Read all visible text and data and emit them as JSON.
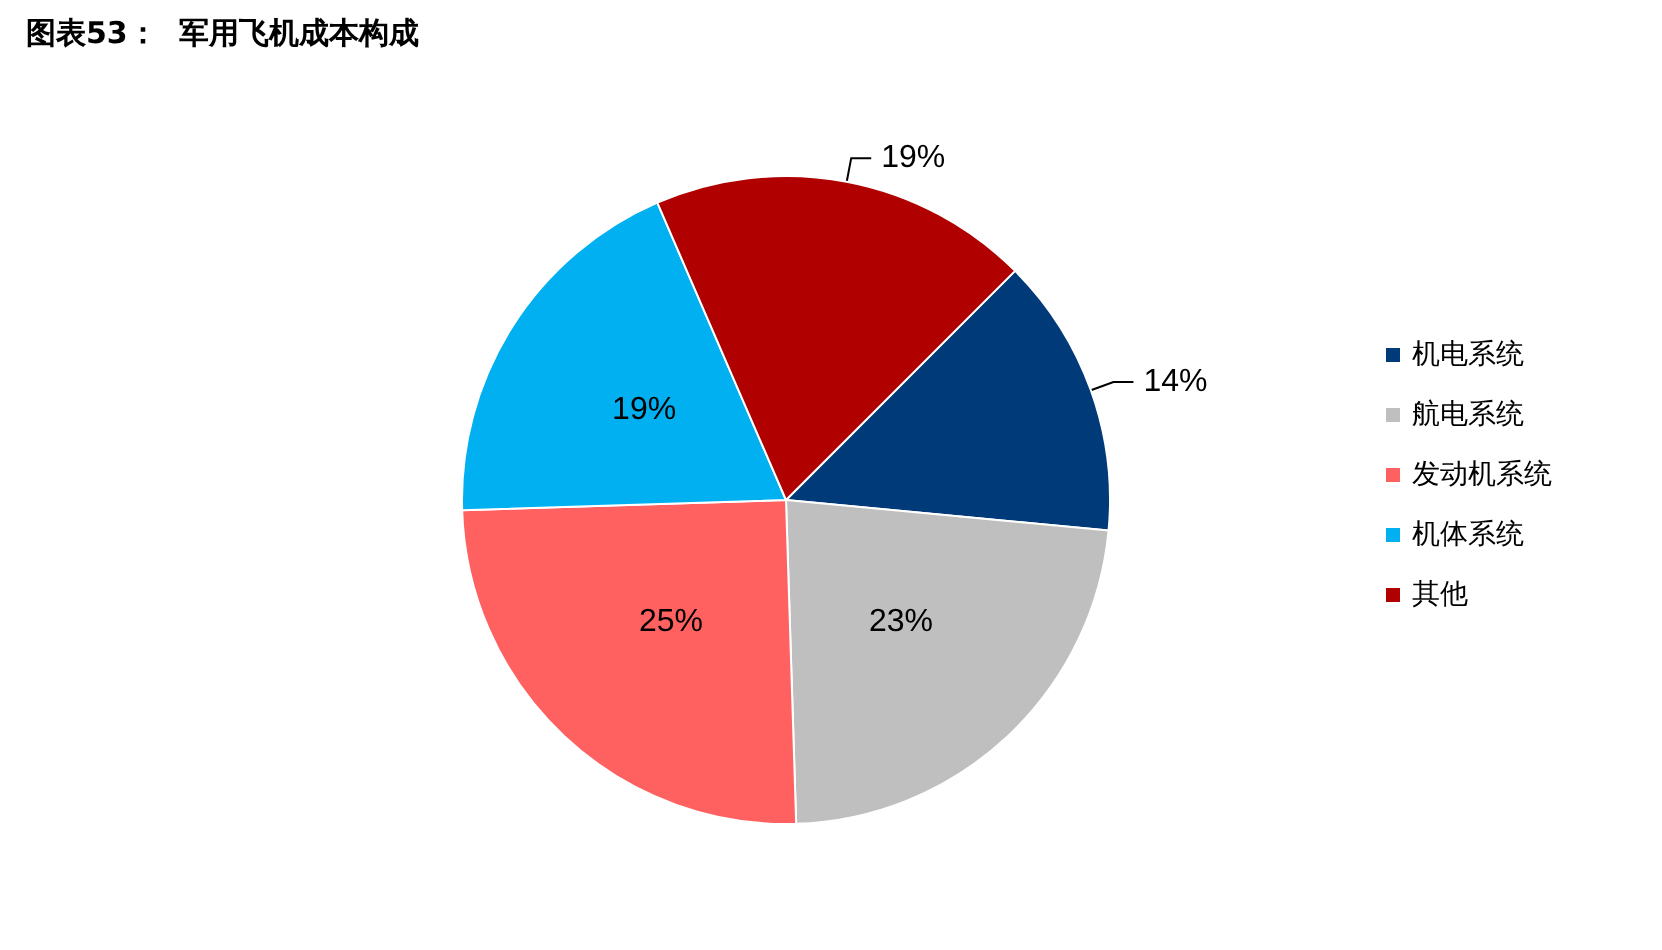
{
  "chart_data": {
    "type": "pie",
    "title": "图表53：  军用飞机成本构成",
    "categories": [
      "机电系统",
      "航电系统",
      "发动机系统",
      "机体系统",
      "其他"
    ],
    "values": [
      14,
      23,
      25,
      19,
      19
    ],
    "colors": [
      "#003a78",
      "#bfbfbf",
      "#ff6161",
      "#00b0f0",
      "#b00000"
    ],
    "value_labels": [
      "14%",
      "23%",
      "25%",
      "19%",
      "19%"
    ],
    "legend": "right"
  }
}
